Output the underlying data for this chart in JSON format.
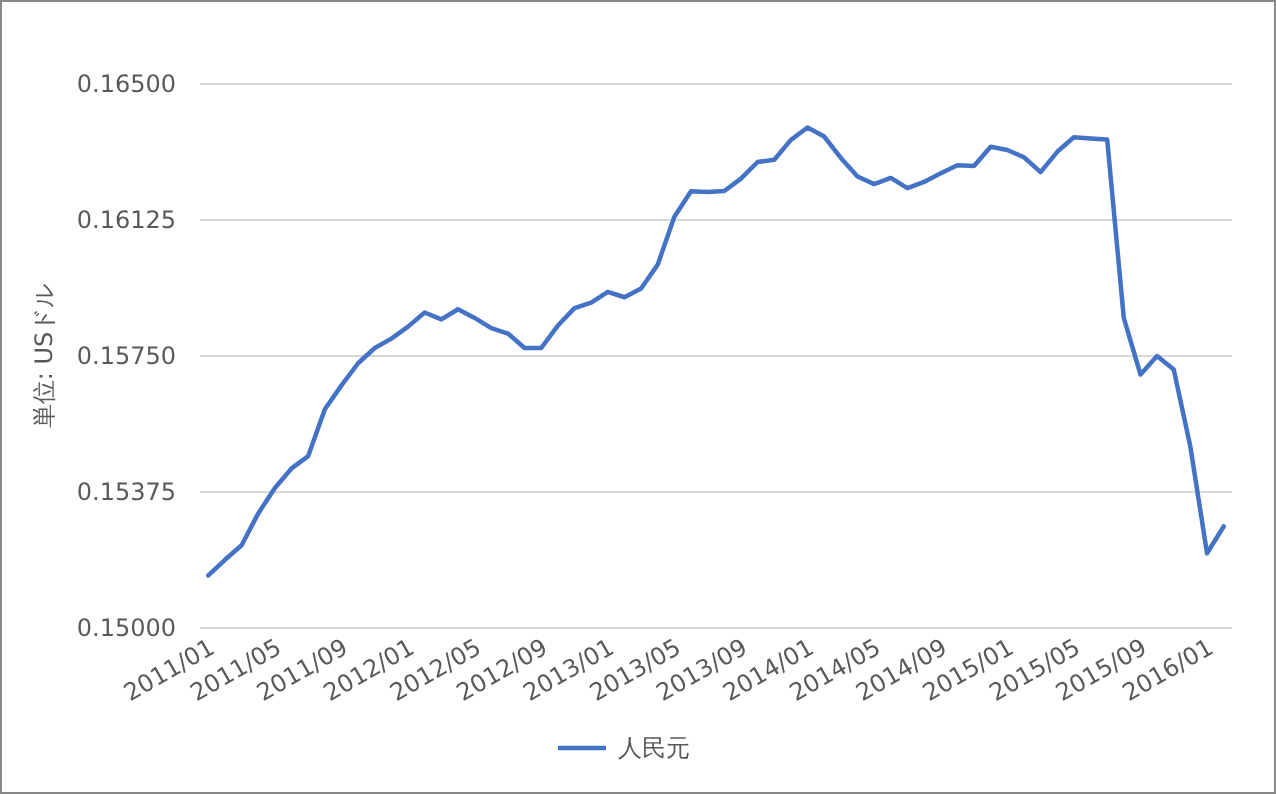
{
  "chart_data": {
    "type": "line",
    "ylabel": "単位: USドル",
    "categories": [
      "2011/01",
      null,
      null,
      null,
      "2011/05",
      null,
      null,
      null,
      "2011/09",
      null,
      null,
      null,
      "2012/01",
      null,
      null,
      null,
      "2012/05",
      null,
      null,
      null,
      "2012/09",
      null,
      null,
      null,
      "2013/01",
      null,
      null,
      null,
      "2013/05",
      null,
      null,
      null,
      "2013/09",
      null,
      null,
      null,
      "2014/01",
      null,
      null,
      null,
      "2014/05",
      null,
      null,
      null,
      "2014/09",
      null,
      null,
      null,
      "2015/01",
      null,
      null,
      null,
      "2015/05",
      null,
      null,
      null,
      "2015/09",
      null,
      null,
      null,
      "2016/01",
      null
    ],
    "series": [
      {
        "name": "人民元",
        "color": "#4472c4",
        "values": [
          0.15145,
          0.15188,
          0.15228,
          0.15316,
          0.15386,
          0.1544,
          0.15474,
          0.15603,
          0.15669,
          0.1573,
          0.15772,
          0.15798,
          0.15831,
          0.1587,
          0.15851,
          0.15879,
          0.15855,
          0.15827,
          0.15812,
          0.15772,
          0.15772,
          0.15834,
          0.15882,
          0.15897,
          0.15927,
          0.15912,
          0.15936,
          0.16002,
          0.16134,
          0.16204,
          0.16202,
          0.16205,
          0.16239,
          0.16285,
          0.16291,
          0.16346,
          0.1638,
          0.16355,
          0.16296,
          0.16245,
          0.16224,
          0.16241,
          0.16213,
          0.1623,
          0.16254,
          0.16276,
          0.16274,
          0.16327,
          0.16318,
          0.16298,
          0.16257,
          0.16313,
          0.16353,
          0.1635,
          0.16347,
          0.15855,
          0.15699,
          0.1575,
          0.15713,
          0.155,
          0.15206,
          0.1528
        ]
      }
    ],
    "ylim": [
      0.15,
      0.165
    ],
    "yticks": [
      {
        "value": 0.15,
        "label": "0.15000"
      },
      {
        "value": 0.15375,
        "label": "0.15375"
      },
      {
        "value": 0.1575,
        "label": "0.15750"
      },
      {
        "value": 0.16125,
        "label": "0.16125"
      },
      {
        "value": 0.165,
        "label": "0.16500"
      }
    ],
    "grid": "y",
    "legend": "bottom"
  }
}
